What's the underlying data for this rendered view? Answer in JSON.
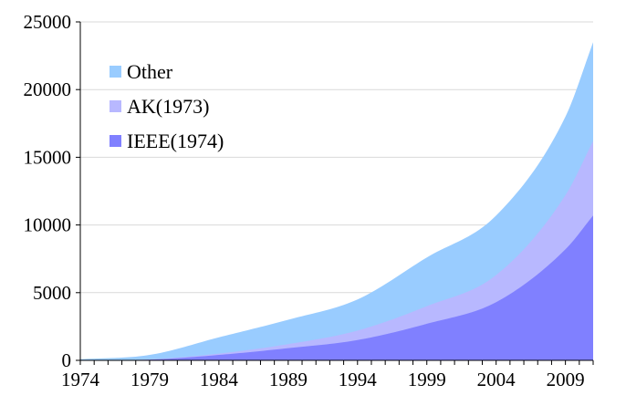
{
  "chart_data": {
    "type": "area",
    "stacked": true,
    "title": "",
    "xlabel": "",
    "ylabel": "",
    "xlim": [
      1974,
      2011
    ],
    "ylim": [
      0,
      25000
    ],
    "x_ticks": [
      1974,
      1979,
      1984,
      1989,
      1994,
      1999,
      2004,
      2009
    ],
    "y_ticks": [
      0,
      5000,
      10000,
      15000,
      20000,
      25000
    ],
    "grid": "horizontal",
    "legend_position": "top-left",
    "x": [
      1974,
      1979,
      1984,
      1989,
      1994,
      1999,
      2004,
      2009,
      2011
    ],
    "series": [
      {
        "name": "IEEE(1974)",
        "color": "#8080ff",
        "values": [
          0,
          50,
          400,
          900,
          1500,
          2700,
          4300,
          8200,
          10700
        ]
      },
      {
        "name": "AK(1973)",
        "color": "#b8b8ff",
        "values": [
          0,
          20,
          100,
          300,
          700,
          1300,
          2000,
          4000,
          5500
        ]
      },
      {
        "name": "Other",
        "color": "#99ccff",
        "values": [
          80,
          330,
          1200,
          1800,
          2300,
          3600,
          4400,
          5800,
          7300
        ]
      }
    ],
    "legend_order": [
      "Other",
      "AK(1973)",
      "IEEE(1974)"
    ]
  }
}
